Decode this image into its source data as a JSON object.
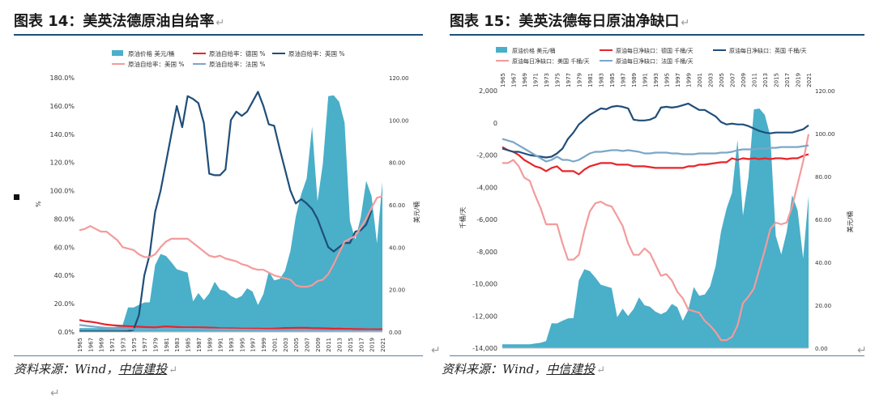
{
  "doc": {
    "return_mark": "↵",
    "chart_left": {
      "title": "图表 14：美英法德原油自给率",
      "source": "资料来源：Wind，",
      "source_org": "中信建投"
    },
    "chart_right": {
      "title": "图表 15：美英法德每日原油净缺口",
      "source": "资料来源：Wind，",
      "source_org": "中信建投"
    }
  },
  "chart_data": [
    {
      "type": "line",
      "title": "图表 14：美英法德原油自给率",
      "ylabel": "%",
      "y2label": "美元/桶",
      "ylim": [
        0,
        180
      ],
      "y2lim": [
        0,
        120
      ],
      "yticks": [
        "0.0%",
        "20.0%",
        "40.0%",
        "60.0%",
        "80.0%",
        "100.0%",
        "120.0%",
        "140.0%",
        "160.0%",
        "180.0%"
      ],
      "y2ticks": [
        "0.00",
        "20.00",
        "40.00",
        "60.00",
        "80.00",
        "100.00",
        "120.00"
      ],
      "xticks": [
        "1965",
        "1967",
        "1969",
        "1971",
        "1973",
        "1975",
        "1977",
        "1979",
        "1981",
        "1983",
        "1985",
        "1987",
        "1989",
        "1991",
        "1993",
        "1995",
        "1997",
        "1999",
        "2001",
        "2003",
        "2005",
        "2007",
        "2009",
        "2011",
        "2013",
        "2015",
        "2017",
        "2019",
        "2021"
      ],
      "legend": [
        "原油价格 美元/桶",
        "原油自给率：德国 %",
        "原油自给率：英国 %",
        "原油自给率：美国 %",
        "原油自给率：法国 %"
      ],
      "legend_position": "top",
      "x": [
        1965,
        1966,
        1967,
        1968,
        1969,
        1970,
        1971,
        1972,
        1973,
        1974,
        1975,
        1976,
        1977,
        1978,
        1979,
        1980,
        1981,
        1982,
        1983,
        1984,
        1985,
        1986,
        1987,
        1988,
        1989,
        1990,
        1991,
        1992,
        1993,
        1994,
        1995,
        1996,
        1997,
        1998,
        1999,
        2000,
        2001,
        2002,
        2003,
        2004,
        2005,
        2006,
        2007,
        2008,
        2009,
        2010,
        2011,
        2012,
        2013,
        2014,
        2015,
        2016,
        2017,
        2018,
        2019,
        2020,
        2021
      ],
      "series": [
        {
          "name": "原油价格 美元/桶",
          "axis": "right",
          "kind": "area",
          "color": "#4aafc9",
          "values": [
            1.8,
            1.8,
            1.8,
            1.8,
            1.8,
            1.8,
            2.2,
            2.5,
            3.3,
            11.6,
            11.5,
            12.8,
            13.9,
            14.0,
            31.6,
            36.8,
            35.9,
            32.9,
            29.6,
            28.8,
            28.0,
            14.4,
            18.4,
            15.0,
            18.2,
            23.7,
            20.0,
            19.3,
            17.0,
            15.8,
            17.0,
            20.6,
            19.1,
            12.7,
            17.9,
            28.5,
            24.4,
            25.0,
            28.8,
            38.3,
            54.5,
            65.1,
            72.4,
            97.0,
            61.7,
            79.5,
            111.3,
            111.7,
            108.7,
            98.9,
            52.4,
            43.7,
            54.2,
            71.3,
            64.2,
            41.8,
            70.9
          ]
        },
        {
          "name": "原油自给率：德国 %",
          "axis": "left",
          "color": "#e8242b",
          "values": [
            8.5,
            7.6,
            7.2,
            6.7,
            5.9,
            5.2,
            4.8,
            4.5,
            4.3,
            4.1,
            3.9,
            3.7,
            3.5,
            3.4,
            3.2,
            3.6,
            3.9,
            3.7,
            3.5,
            3.3,
            3.2,
            3.3,
            3.2,
            3.2,
            3.1,
            2.9,
            2.7,
            2.6,
            2.6,
            2.5,
            2.4,
            2.4,
            2.4,
            2.4,
            2.3,
            2.3,
            2.4,
            2.6,
            2.8,
            2.8,
            2.9,
            2.9,
            2.9,
            2.7,
            2.7,
            2.6,
            2.5,
            2.3,
            2.4,
            2.2,
            2.2,
            2.0,
            2.0,
            1.9,
            1.9,
            1.9,
            1.9
          ]
        },
        {
          "name": "原油自给率：英国 %",
          "axis": "left",
          "color": "#1f4e79",
          "values": [
            0.4,
            0.4,
            0.4,
            0.4,
            0.4,
            0.4,
            0.4,
            0.4,
            0.4,
            0.5,
            1.5,
            12,
            40,
            55,
            85,
            100,
            120,
            140,
            160,
            145,
            167,
            165,
            162,
            148,
            112,
            111,
            111,
            115,
            150,
            156,
            153,
            156,
            163,
            170,
            160,
            147,
            146,
            130,
            115,
            100,
            91,
            94,
            91,
            87,
            80,
            70,
            60,
            57,
            60,
            63,
            63,
            71,
            72,
            76,
            86,
            null,
            null
          ]
        },
        {
          "name": "原油自给率：美国 %",
          "axis": "left",
          "color": "#f39b9b",
          "values": [
            72,
            73,
            75,
            73,
            71,
            71,
            68,
            65,
            60,
            59,
            58,
            55,
            53,
            53,
            55,
            60,
            64,
            66,
            66,
            66,
            66,
            63,
            60,
            57,
            54,
            53,
            54,
            52,
            51,
            50,
            48,
            47,
            45,
            44,
            44,
            42,
            40,
            39,
            38,
            37,
            33,
            32,
            32,
            33,
            36,
            37,
            41,
            48,
            56,
            64,
            66,
            68,
            74,
            80,
            88,
            95,
            96
          ]
        },
        {
          "name": "原油自给率：法国 %",
          "axis": "left",
          "color": "#7ba7c8",
          "values": [
            5,
            4.5,
            4,
            3.6,
            3.2,
            3,
            2.8,
            2.5,
            2.3,
            2.1,
            2,
            1.9,
            1.9,
            2,
            2,
            2.1,
            2.1,
            2,
            2,
            2.1,
            2.2,
            2.1,
            2.1,
            2,
            1.9,
            1.9,
            1.8,
            1.8,
            1.7,
            1.7,
            1.6,
            1.6,
            1.5,
            1.5,
            1.4,
            1.4,
            1.4,
            1.4,
            1.3,
            1.3,
            1.2,
            1.2,
            1.1,
            1.1,
            1,
            1,
            1,
            0.9,
            0.9,
            0.9,
            0.9,
            0.8,
            0.8,
            0.8,
            0.8,
            0.7,
            0.7
          ]
        }
      ]
    },
    {
      "type": "line",
      "title": "图表 15：美英法德每日原油净缺口",
      "ylabel": "千桶/天",
      "y2label": "美元/桶",
      "ylim": [
        -14000,
        2000
      ],
      "y2lim": [
        0,
        120
      ],
      "yticks": [
        "2,000",
        "0",
        "-2,000",
        "-4,000",
        "-6,000",
        "-8,000",
        "-10,000",
        "-12,000",
        "-14,000"
      ],
      "y2ticks": [
        "120.00",
        "100.00",
        "80.00",
        "60.00",
        "40.00",
        "20.00",
        "0.00"
      ],
      "xticks": [
        "1965",
        "1967",
        "1969",
        "1971",
        "1973",
        "1975",
        "1977",
        "1979",
        "1981",
        "1983",
        "1985",
        "1987",
        "1989",
        "1991",
        "1993",
        "1995",
        "1997",
        "1999",
        "2001",
        "2003",
        "2005",
        "2007",
        "2009",
        "2011",
        "2013",
        "2015",
        "2017",
        "2019",
        "2021"
      ],
      "legend": [
        "原油价格 美元/桶",
        "原油每日净缺口：德国 千桶/天",
        "原油每日净缺口：英国 千桶/天",
        "原油每日净缺口：美国 千桶/天",
        "原油每日净缺口：法国 千桶/天"
      ],
      "legend_position": "top",
      "x": [
        1965,
        1966,
        1967,
        1968,
        1969,
        1970,
        1971,
        1972,
        1973,
        1974,
        1975,
        1976,
        1977,
        1978,
        1979,
        1980,
        1981,
        1982,
        1983,
        1984,
        1985,
        1986,
        1987,
        1988,
        1989,
        1990,
        1991,
        1992,
        1993,
        1994,
        1995,
        1996,
        1997,
        1998,
        1999,
        2000,
        2001,
        2002,
        2003,
        2004,
        2005,
        2006,
        2007,
        2008,
        2009,
        2010,
        2011,
        2012,
        2013,
        2014,
        2015,
        2016,
        2017,
        2018,
        2019,
        2020,
        2021
      ],
      "series": [
        {
          "name": "原油价格 美元/桶",
          "axis": "right",
          "kind": "area",
          "color": "#4aafc9",
          "values": [
            1.8,
            1.8,
            1.8,
            1.8,
            1.8,
            1.8,
            2.2,
            2.5,
            3.3,
            11.6,
            11.5,
            12.8,
            13.9,
            14.0,
            31.6,
            36.8,
            35.9,
            32.9,
            29.6,
            28.8,
            28.0,
            14.4,
            18.4,
            15.0,
            18.2,
            23.7,
            20.0,
            19.3,
            17.0,
            15.8,
            17.0,
            20.6,
            19.1,
            12.7,
            17.9,
            28.5,
            24.4,
            25.0,
            28.8,
            38.3,
            54.5,
            65.1,
            72.4,
            97.0,
            61.7,
            79.5,
            111.3,
            111.7,
            108.7,
            98.9,
            52.4,
            43.7,
            54.2,
            71.3,
            64.2,
            41.8,
            70.9
          ]
        },
        {
          "name": "原油每日净缺口：德国 千桶/天",
          "axis": "left",
          "color": "#e8242b",
          "values": [
            -1500,
            -1700,
            -1800,
            -2000,
            -2300,
            -2500,
            -2700,
            -2800,
            -3000,
            -2800,
            -2700,
            -3000,
            -3000,
            -3000,
            -3200,
            -2900,
            -2700,
            -2600,
            -2500,
            -2500,
            -2500,
            -2600,
            -2600,
            -2600,
            -2700,
            -2700,
            -2700,
            -2750,
            -2800,
            -2800,
            -2800,
            -2800,
            -2800,
            -2800,
            -2700,
            -2700,
            -2600,
            -2600,
            -2550,
            -2500,
            -2450,
            -2450,
            -2200,
            -2300,
            -2200,
            -2250,
            -2200,
            -2250,
            -2200,
            -2250,
            -2200,
            -2200,
            -2250,
            -2200,
            -2200,
            -2050,
            -1950
          ]
        },
        {
          "name": "原油每日净缺口：英国 千桶/天",
          "axis": "left",
          "color": "#1f4e79",
          "values": [
            -1600,
            -1700,
            -1800,
            -1800,
            -1900,
            -2000,
            -2050,
            -2100,
            -2150,
            -2100,
            -1900,
            -1600,
            -1000,
            -600,
            -100,
            200,
            500,
            700,
            900,
            850,
            1000,
            1050,
            1000,
            900,
            200,
            150,
            150,
            200,
            350,
            950,
            1000,
            950,
            1000,
            1100,
            1200,
            1000,
            800,
            800,
            600,
            400,
            50,
            -100,
            -50,
            -100,
            -100,
            -200,
            -350,
            -500,
            -600,
            -650,
            -600,
            -600,
            -600,
            -600,
            -500,
            -400,
            -150
          ]
        },
        {
          "name": "原油每日净缺口：美国 千桶/天",
          "axis": "left",
          "color": "#f39b9b",
          "values": [
            -2500,
            -2500,
            -2300,
            -2700,
            -3400,
            -3600,
            -4500,
            -5300,
            -6300,
            -6300,
            -6300,
            -7500,
            -8500,
            -8500,
            -8200,
            -6700,
            -5500,
            -5000,
            -4900,
            -5100,
            -5200,
            -5800,
            -6400,
            -7500,
            -8200,
            -8200,
            -7800,
            -8100,
            -8800,
            -9500,
            -9400,
            -9800,
            -10500,
            -10900,
            -11600,
            -11700,
            -11800,
            -12300,
            -12600,
            -13000,
            -13500,
            -13500,
            -13300,
            -12600,
            -11200,
            -10800,
            -10300,
            -9100,
            -7900,
            -6600,
            -6200,
            -6300,
            -6200,
            -5200,
            -3800,
            -2400,
            -700
          ]
        },
        {
          "name": "原油每日净缺口：法国 千桶/天",
          "axis": "left",
          "color": "#7ba7c8",
          "values": [
            -1000,
            -1100,
            -1200,
            -1400,
            -1600,
            -1800,
            -2000,
            -2200,
            -2400,
            -2300,
            -2100,
            -2300,
            -2300,
            -2400,
            -2300,
            -2100,
            -1900,
            -1800,
            -1800,
            -1750,
            -1700,
            -1700,
            -1750,
            -1700,
            -1750,
            -1800,
            -1900,
            -1900,
            -1850,
            -1850,
            -1850,
            -1900,
            -1900,
            -1950,
            -1950,
            -1950,
            -1900,
            -1900,
            -1900,
            -1900,
            -1850,
            -1850,
            -1800,
            -1700,
            -1650,
            -1650,
            -1650,
            -1600,
            -1600,
            -1550,
            -1550,
            -1500,
            -1500,
            -1500,
            -1500,
            -1450,
            -1400
          ]
        }
      ]
    }
  ]
}
